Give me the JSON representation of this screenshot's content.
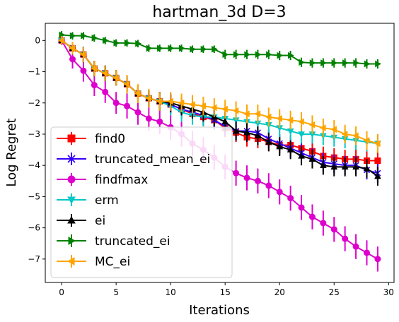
{
  "chart_data": {
    "type": "line",
    "title": "hartman_3d D=3",
    "xlabel": "Iterations",
    "ylabel": "Log Regret",
    "xlim": [
      -1.5,
      30.5
    ],
    "ylim": [
      -7.75,
      0.55
    ],
    "xticks": [
      0,
      5,
      10,
      15,
      20,
      25,
      30
    ],
    "xtick_labels": [
      "0",
      "5",
      "10",
      "15",
      "20",
      "25",
      "30"
    ],
    "yticks": [
      0,
      -1,
      -2,
      -3,
      -4,
      -5,
      -6,
      -7
    ],
    "ytick_labels": [
      "0",
      "−1",
      "−2",
      "−3",
      "−4",
      "−5",
      "−6",
      "−7"
    ],
    "grid": false,
    "legend_position": "lower-left",
    "x": [
      0,
      1,
      2,
      3,
      4,
      5,
      6,
      7,
      8,
      9,
      10,
      11,
      12,
      13,
      14,
      15,
      16,
      17,
      18,
      19,
      20,
      21,
      22,
      23,
      24,
      25,
      26,
      27,
      28,
      29
    ],
    "series": [
      {
        "name": "find0",
        "color": "#ff0000",
        "marker": "square",
        "values": [
          0,
          -0.25,
          -0.45,
          -0.9,
          -1.05,
          -1.2,
          -1.4,
          -1.7,
          -1.85,
          -1.95,
          -2.05,
          -2.2,
          -2.35,
          -2.45,
          -2.55,
          -2.8,
          -2.95,
          -3.1,
          -3.15,
          -3.25,
          -3.35,
          -3.35,
          -3.45,
          -3.55,
          -3.7,
          -3.75,
          -3.8,
          -3.8,
          -3.85,
          -3.85
        ],
        "err": [
          0.15,
          0.2,
          0.25,
          0.25,
          0.25,
          0.25,
          0.25,
          0.25,
          0.25,
          0.3,
          0.3,
          0.3,
          0.3,
          0.3,
          0.3,
          0.3,
          0.3,
          0.3,
          0.3,
          0.3,
          0.3,
          0.3,
          0.3,
          0.3,
          0.3,
          0.3,
          0.3,
          0.3,
          0.3,
          0.3
        ]
      },
      {
        "name": "truncated_mean_ei",
        "color": "#3300ff",
        "marker": "x",
        "values": [
          0,
          -0.25,
          -0.45,
          -0.9,
          -1.05,
          -1.2,
          -1.4,
          -1.7,
          -1.85,
          -1.95,
          -2.05,
          -2.2,
          -2.3,
          -2.4,
          -2.55,
          -2.75,
          -2.9,
          -2.9,
          -2.95,
          -3.15,
          -3.3,
          -3.45,
          -3.6,
          -3.75,
          -3.9,
          -3.95,
          -4.0,
          -4.0,
          -4.15,
          -4.25
        ],
        "err": [
          0.15,
          0.2,
          0.25,
          0.25,
          0.25,
          0.25,
          0.25,
          0.25,
          0.25,
          0.3,
          0.3,
          0.3,
          0.3,
          0.3,
          0.3,
          0.3,
          0.3,
          0.3,
          0.3,
          0.3,
          0.3,
          0.3,
          0.3,
          0.3,
          0.3,
          0.3,
          0.3,
          0.3,
          0.3,
          0.3
        ]
      },
      {
        "name": "findfmax",
        "color": "#dd00cc",
        "marker": "circle",
        "values": [
          0,
          -0.6,
          -0.97,
          -1.43,
          -1.65,
          -2.0,
          -2.1,
          -2.3,
          -2.5,
          -2.6,
          -2.78,
          -3.0,
          -3.3,
          -3.5,
          -3.75,
          -4.05,
          -4.25,
          -4.4,
          -4.5,
          -4.65,
          -4.85,
          -5.05,
          -5.35,
          -5.65,
          -5.85,
          -6.05,
          -6.35,
          -6.6,
          -6.8,
          -7.0
        ],
        "err": [
          0.15,
          0.3,
          0.35,
          0.35,
          0.35,
          0.35,
          0.4,
          0.4,
          0.4,
          0.4,
          0.4,
          0.4,
          0.4,
          0.4,
          0.4,
          0.4,
          0.4,
          0.4,
          0.4,
          0.4,
          0.4,
          0.4,
          0.4,
          0.4,
          0.4,
          0.4,
          0.4,
          0.4,
          0.4,
          0.4
        ]
      },
      {
        "name": "erm",
        "color": "#00c8c8",
        "marker": "triangle-down",
        "values": [
          0,
          -0.25,
          -0.45,
          -0.9,
          -1.05,
          -1.2,
          -1.4,
          -1.7,
          -1.85,
          -1.95,
          -2.1,
          -2.3,
          -2.4,
          -2.45,
          -2.45,
          -2.5,
          -2.55,
          -2.6,
          -2.65,
          -2.7,
          -2.8,
          -2.9,
          -3.0,
          -3.0,
          -3.05,
          -3.1,
          -3.15,
          -3.2,
          -3.25,
          -3.3
        ],
        "err": [
          0.15,
          0.2,
          0.25,
          0.25,
          0.25,
          0.25,
          0.25,
          0.25,
          0.25,
          0.3,
          0.3,
          0.3,
          0.3,
          0.3,
          0.3,
          0.3,
          0.3,
          0.3,
          0.3,
          0.3,
          0.3,
          0.3,
          0.3,
          0.3,
          0.3,
          0.3,
          0.3,
          0.3,
          0.3,
          0.3
        ]
      },
      {
        "name": "ei",
        "color": "#000000",
        "marker": "triangle-up",
        "values": [
          0,
          -0.25,
          -0.45,
          -0.9,
          -1.05,
          -1.2,
          -1.4,
          -1.7,
          -1.85,
          -1.95,
          -2.0,
          -2.1,
          -2.2,
          -2.3,
          -2.45,
          -2.6,
          -2.9,
          -2.95,
          -3.05,
          -3.25,
          -3.4,
          -3.5,
          -3.7,
          -3.8,
          -4.0,
          -4.05,
          -4.05,
          -4.05,
          -4.1,
          -4.35
        ],
        "err": [
          0.15,
          0.2,
          0.25,
          0.25,
          0.25,
          0.25,
          0.25,
          0.25,
          0.25,
          0.3,
          0.3,
          0.3,
          0.3,
          0.3,
          0.3,
          0.3,
          0.3,
          0.3,
          0.3,
          0.3,
          0.3,
          0.3,
          0.3,
          0.3,
          0.3,
          0.3,
          0.3,
          0.3,
          0.3,
          0.3
        ]
      },
      {
        "name": "truncated_ei",
        "color": "#008000",
        "marker": "triangle-right",
        "values": [
          0.18,
          0.15,
          0.15,
          0.08,
          0.0,
          -0.08,
          -0.08,
          -0.1,
          -0.25,
          -0.25,
          -0.25,
          -0.25,
          -0.28,
          -0.28,
          -0.28,
          -0.45,
          -0.45,
          -0.45,
          -0.45,
          -0.45,
          -0.48,
          -0.48,
          -0.7,
          -0.72,
          -0.72,
          -0.72,
          -0.72,
          -0.72,
          -0.75,
          -0.75
        ],
        "err": [
          0.12,
          0.12,
          0.12,
          0.12,
          0.12,
          0.12,
          0.12,
          0.12,
          0.12,
          0.12,
          0.12,
          0.12,
          0.12,
          0.12,
          0.12,
          0.15,
          0.15,
          0.15,
          0.15,
          0.15,
          0.15,
          0.15,
          0.15,
          0.15,
          0.15,
          0.15,
          0.15,
          0.15,
          0.15,
          0.15
        ]
      },
      {
        "name": "MC_ei",
        "color": "#ffa500",
        "marker": "triangle-left",
        "values": [
          0,
          -0.25,
          -0.45,
          -0.9,
          -1.05,
          -1.2,
          -1.4,
          -1.7,
          -1.85,
          -1.95,
          -1.95,
          -2.0,
          -2.05,
          -2.1,
          -2.15,
          -2.2,
          -2.25,
          -2.35,
          -2.35,
          -2.45,
          -2.5,
          -2.55,
          -2.6,
          -2.7,
          -2.8,
          -2.85,
          -3.0,
          -3.05,
          -3.2,
          -3.3
        ],
        "err": [
          0.15,
          0.2,
          0.25,
          0.25,
          0.25,
          0.25,
          0.3,
          0.3,
          0.3,
          0.3,
          0.3,
          0.3,
          0.3,
          0.3,
          0.3,
          0.3,
          0.3,
          0.3,
          0.3,
          0.3,
          0.3,
          0.3,
          0.3,
          0.3,
          0.3,
          0.3,
          0.3,
          0.3,
          0.3,
          0.3
        ]
      }
    ]
  }
}
